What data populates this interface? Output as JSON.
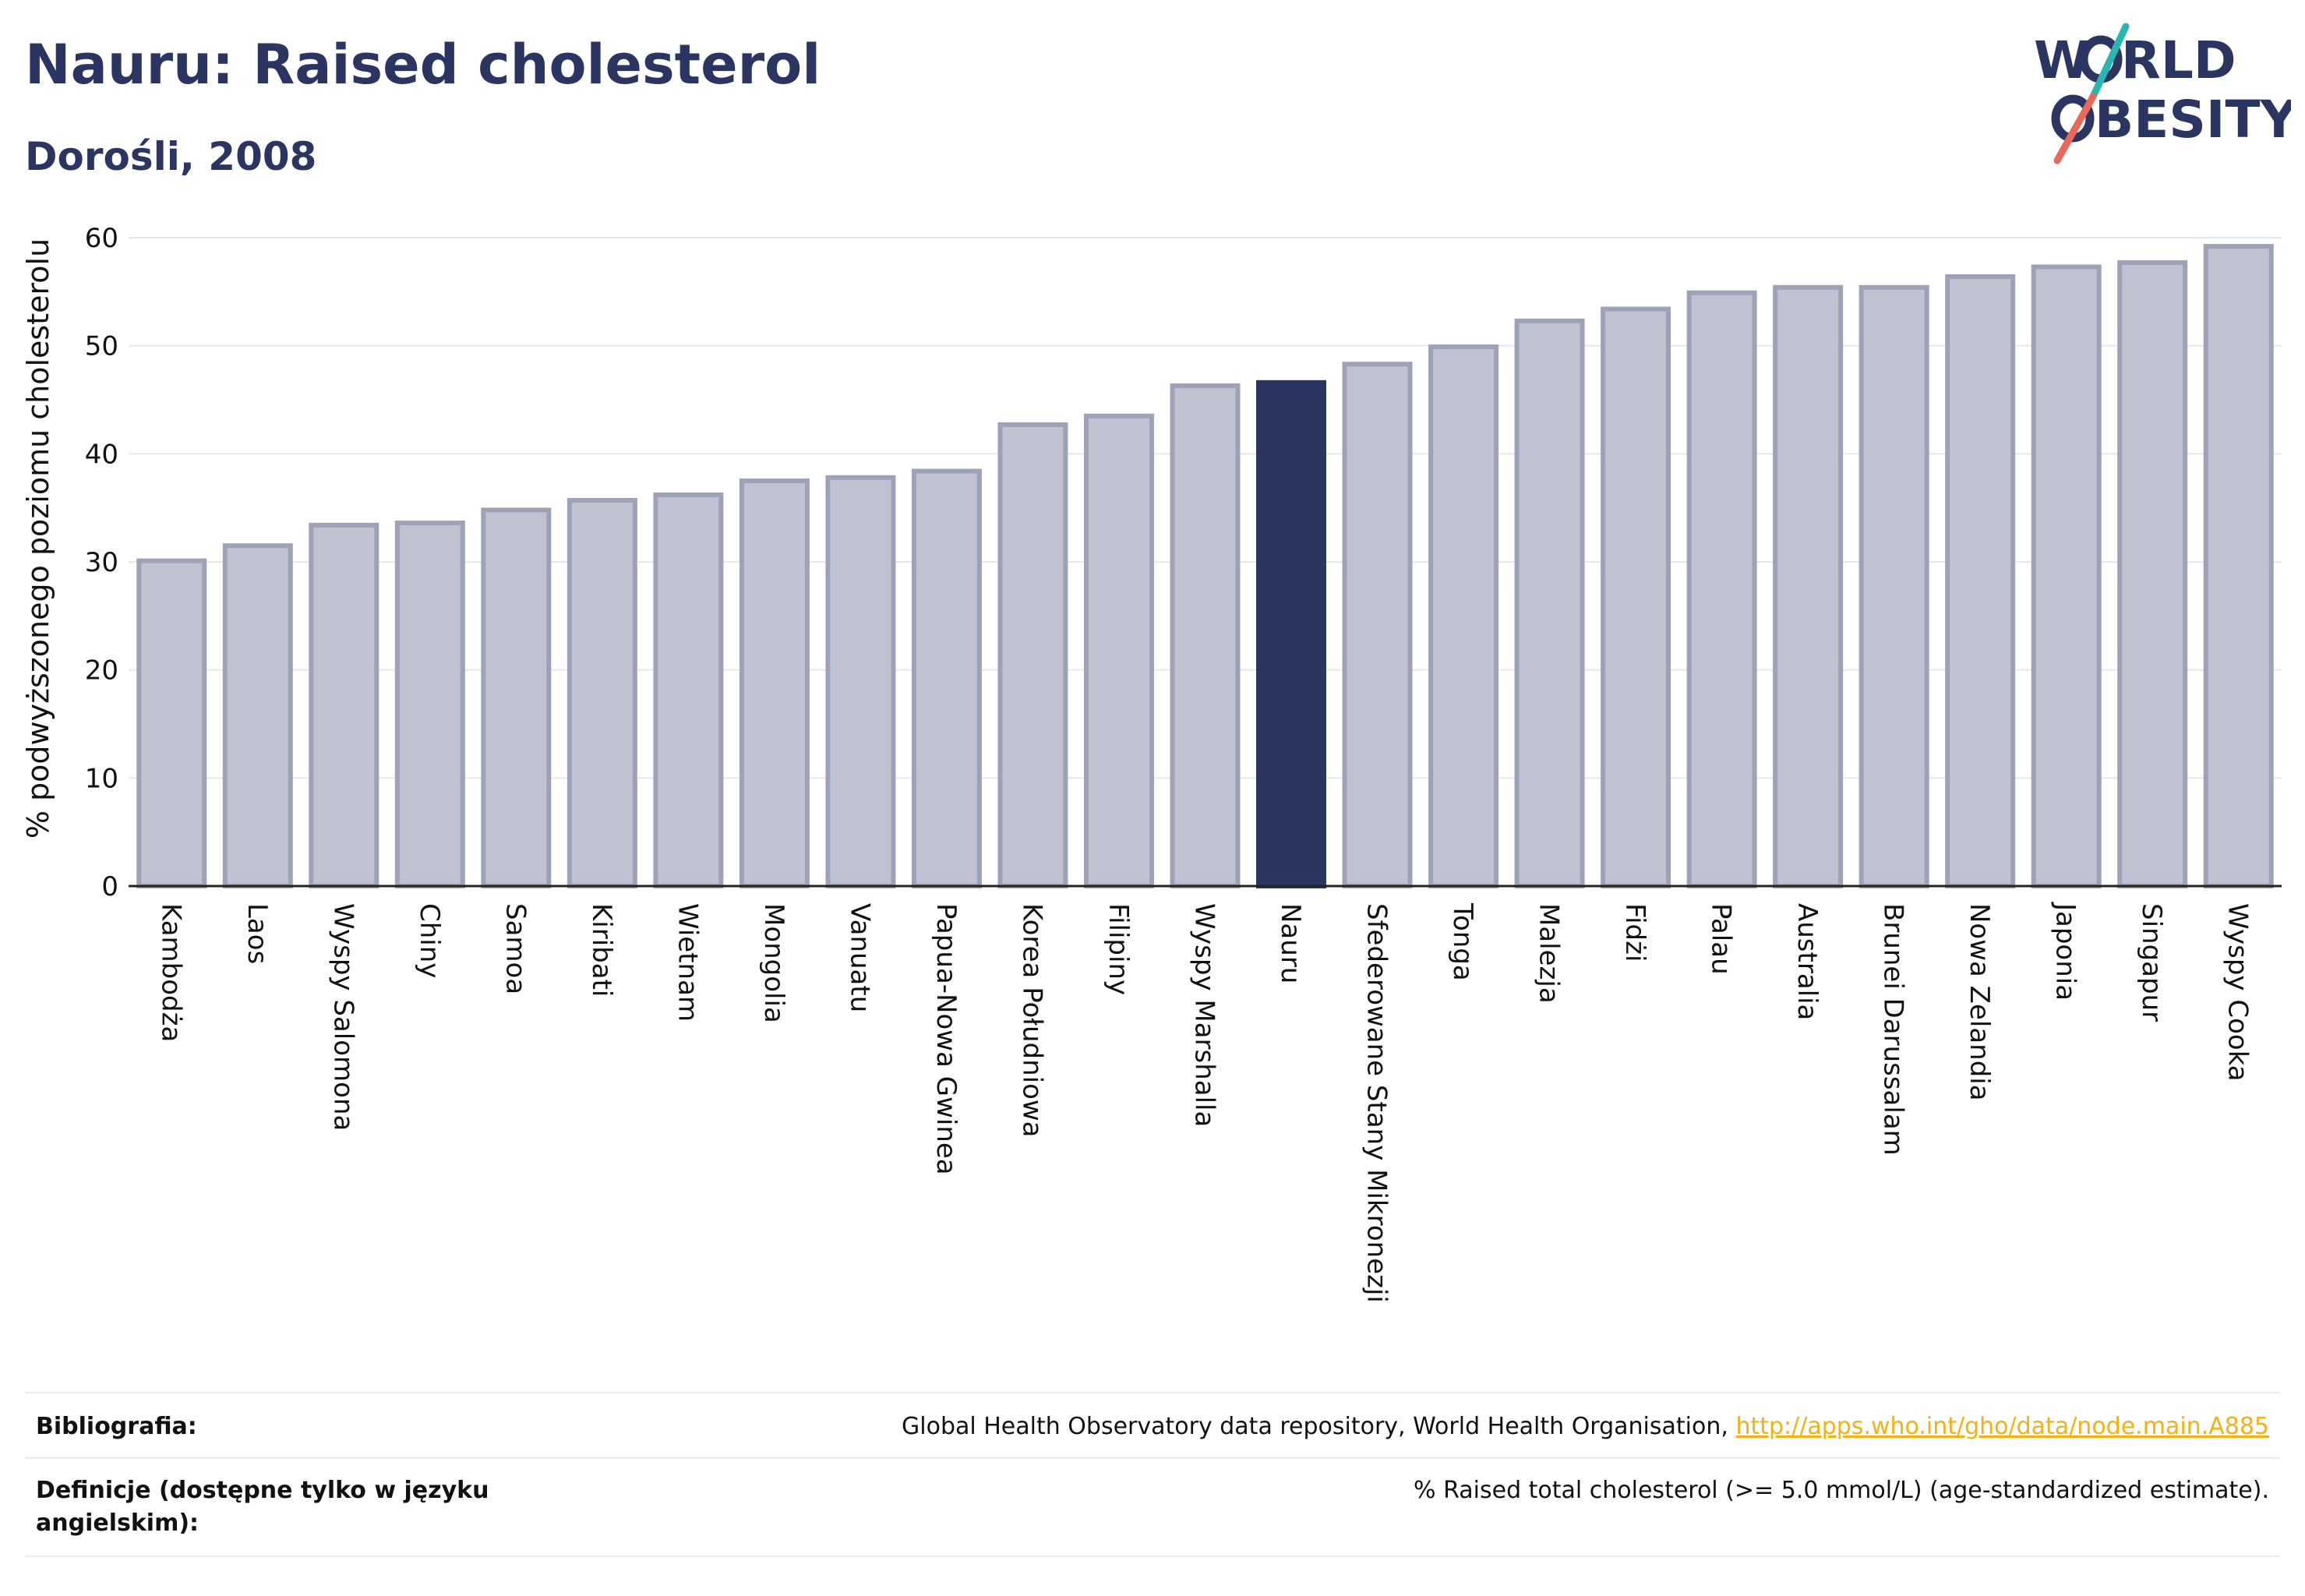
{
  "header": {
    "title": "Nauru: Raised cholesterol",
    "subtitle": "Dorośli, 2008"
  },
  "logo": {
    "line1": "W",
    "line1b": "RLD",
    "line2b": "BESITY",
    "accent_teal": "#2bb5b0",
    "accent_red": "#e8685a",
    "text_color": "#2b3561"
  },
  "chart_data": {
    "type": "bar",
    "ylabel": "% podwyższonego poziomu cholesterolu",
    "ylim": [
      0,
      60
    ],
    "yticks": [
      0,
      10,
      20,
      30,
      40,
      50,
      60
    ],
    "grid": true,
    "highlight": "Nauru",
    "bar_color": "#bfc2d0",
    "bar_border": "#9da2b8",
    "highlight_color": "#2b3561",
    "categories": [
      "Kambodża",
      "Laos",
      "Wyspy Salomona",
      "Chiny",
      "Samoa",
      "Kiribati",
      "Wietnam",
      "Mongolia",
      "Vanuatu",
      "Papua-Nowa Gwinea",
      "Korea Południowa",
      "Filipiny",
      "Wyspy Marshalla",
      "Nauru",
      "Sfederowane Stany Mikronezji",
      "Tonga",
      "Malezja",
      "Fidżi",
      "Palau",
      "Australia",
      "Brunei Darussalam",
      "Nowa Zelandia",
      "Japonia",
      "Singapur",
      "Wyspy Cooka"
    ],
    "values": [
      30.1,
      31.5,
      33.4,
      33.6,
      34.8,
      35.7,
      36.2,
      37.5,
      37.8,
      38.4,
      42.7,
      43.5,
      46.3,
      46.6,
      48.3,
      49.9,
      52.3,
      53.4,
      54.9,
      55.4,
      55.4,
      56.4,
      57.3,
      57.7,
      59.2
    ]
  },
  "footer": {
    "bibliography_label": "Bibliografia:",
    "bibliography_text": "Global Health Observatory data repository, World Health Organisation, ",
    "bibliography_link": "http://apps.who.int/gho/data/node.main.A885",
    "definitions_label": "Definicje (dostępne tylko w języku angielskim):",
    "definitions_text": "% Raised total cholesterol (>= 5.0 mmol/L) (age-standardized estimate)."
  }
}
